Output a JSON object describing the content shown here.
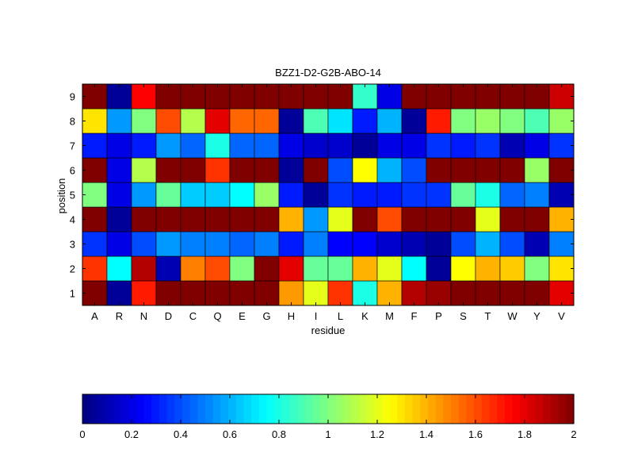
{
  "chart_data": {
    "type": "heatmap",
    "title": "BZZ1-D2-G2B-ABO-14",
    "xlabel": "residue",
    "ylabel": "position",
    "x_categories": [
      "A",
      "R",
      "N",
      "D",
      "C",
      "Q",
      "E",
      "G",
      "H",
      "I",
      "L",
      "K",
      "M",
      "F",
      "P",
      "S",
      "T",
      "W",
      "Y",
      "V"
    ],
    "y_categories": [
      "1",
      "2",
      "3",
      "4",
      "5",
      "6",
      "7",
      "8",
      "9"
    ],
    "colormap": "jet",
    "color_range": [
      0,
      2
    ],
    "colorbar_ticks": [
      "0",
      "0.2",
      "0.4",
      "0.6",
      "0.8",
      "1",
      "1.2",
      "1.4",
      "1.6",
      "1.8",
      "2"
    ],
    "colorbar_position": "bottom",
    "values": [
      [
        2.0,
        0.05,
        1.7,
        2.0,
        2.0,
        2.0,
        2.0,
        2.0,
        1.45,
        1.2,
        1.65,
        0.8,
        1.4,
        1.9,
        1.95,
        2.0,
        2.0,
        2.0,
        2.0,
        1.8
      ],
      [
        1.65,
        0.75,
        1.9,
        0.1,
        1.5,
        1.6,
        1.0,
        2.0,
        1.8,
        0.95,
        0.95,
        1.4,
        1.2,
        0.75,
        0.05,
        1.25,
        1.4,
        1.35,
        1.0,
        1.3
      ],
      [
        0.35,
        0.2,
        0.4,
        0.55,
        0.5,
        0.5,
        0.45,
        0.5,
        0.3,
        0.5,
        0.25,
        0.25,
        0.15,
        0.1,
        0.05,
        0.4,
        0.6,
        0.4,
        0.1,
        0.5
      ],
      [
        2.0,
        0.05,
        2.0,
        2.0,
        2.0,
        2.0,
        2.0,
        2.0,
        1.4,
        0.55,
        1.2,
        2.0,
        1.6,
        2.0,
        2.0,
        2.0,
        1.2,
        2.0,
        2.0,
        1.4
      ],
      [
        1.0,
        0.2,
        0.55,
        0.95,
        0.65,
        0.65,
        0.75,
        1.05,
        0.3,
        0.05,
        0.35,
        0.3,
        0.3,
        0.35,
        0.35,
        0.95,
        0.8,
        0.45,
        0.5,
        0.1
      ],
      [
        2.0,
        0.2,
        1.1,
        2.0,
        2.0,
        1.65,
        2.0,
        2.0,
        0.05,
        2.0,
        0.4,
        1.25,
        0.6,
        0.4,
        2.0,
        2.0,
        2.0,
        2.0,
        1.05,
        2.0
      ],
      [
        0.3,
        0.2,
        0.3,
        0.55,
        0.45,
        0.8,
        0.45,
        0.45,
        0.2,
        0.15,
        0.15,
        0.05,
        0.2,
        0.2,
        0.35,
        0.3,
        0.35,
        0.1,
        0.2,
        0.35
      ],
      [
        1.3,
        0.55,
        1.0,
        1.6,
        1.1,
        1.8,
        1.55,
        1.55,
        0.05,
        0.9,
        0.7,
        0.3,
        0.6,
        0.05,
        1.7,
        1.0,
        1.05,
        1.0,
        0.9,
        1.05
      ],
      [
        2.0,
        0.05,
        1.75,
        2.0,
        2.0,
        2.0,
        2.0,
        2.0,
        2.0,
        2.0,
        2.0,
        0.85,
        0.2,
        2.0,
        2.0,
        2.0,
        2.0,
        2.0,
        2.0,
        1.85
      ]
    ]
  }
}
